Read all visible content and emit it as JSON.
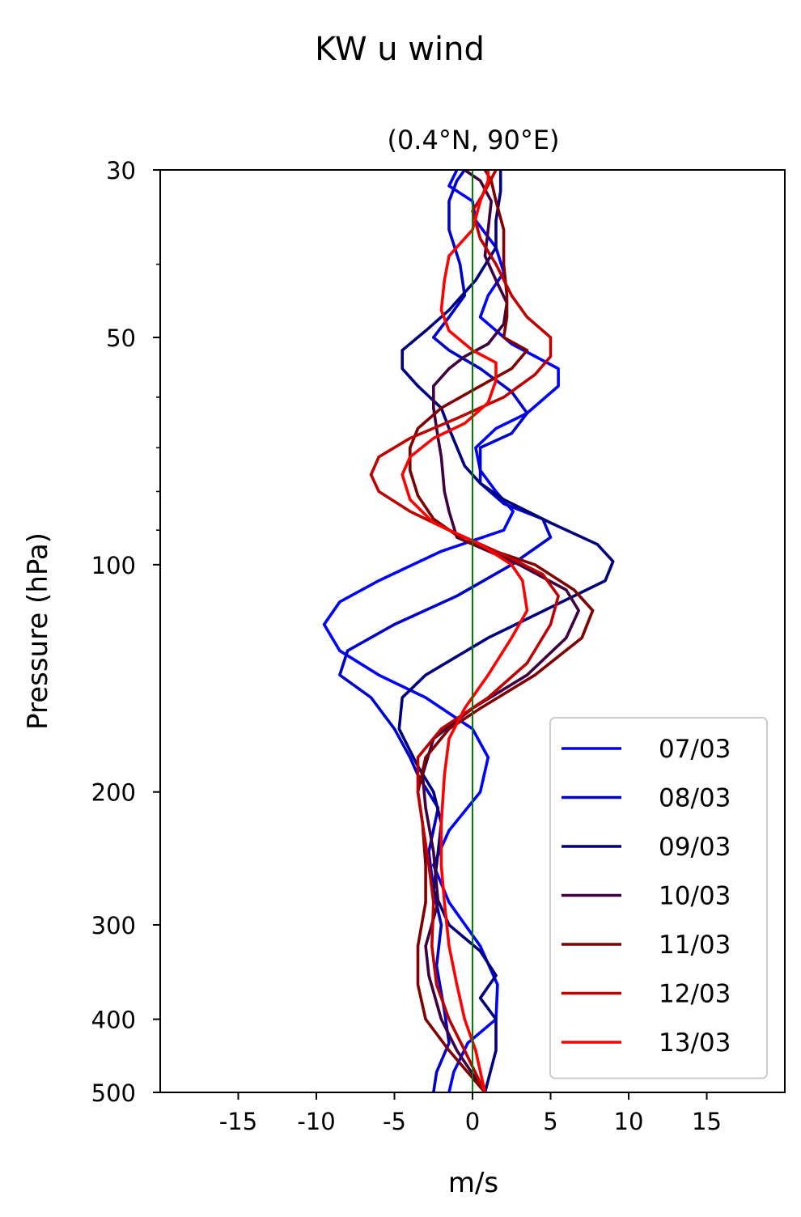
{
  "chart_data": {
    "type": "line",
    "title": "KW u wind",
    "subtitle": "(0.4°N, 90°E)",
    "xlabel": "m/s",
    "ylabel": "Pressure (hPa)",
    "xlim": [
      -20,
      20
    ],
    "ylim": [
      500,
      30
    ],
    "yscale": "log",
    "xticks": [
      -15,
      -10,
      -5,
      0,
      5,
      10,
      15
    ],
    "xtick_labels": [
      "-15",
      "-10",
      "-5",
      "0",
      "5",
      "10",
      "15"
    ],
    "yticks": [
      30,
      50,
      100,
      200,
      300,
      400,
      500
    ],
    "ytick_labels": [
      "30",
      "50",
      "100",
      "200",
      "300",
      "400",
      "500"
    ],
    "y_minor_ticks": [
      40,
      60,
      70,
      80,
      90
    ],
    "reference_line": {
      "x": 0,
      "color": "#008000"
    },
    "legend_position": "bottom-right",
    "grid": false,
    "series": [
      {
        "name": "07/03",
        "color": "#0000ff",
        "points": [
          [
            -1.5,
            500
          ],
          [
            -1.2,
            470
          ],
          [
            -0.3,
            430
          ],
          [
            1.5,
            400
          ],
          [
            1.6,
            360
          ],
          [
            0.5,
            320
          ],
          [
            -1.5,
            280
          ],
          [
            -2.5,
            250
          ],
          [
            -1.5,
            225
          ],
          [
            0.5,
            200
          ],
          [
            1.0,
            180
          ],
          [
            0.0,
            165
          ],
          [
            -3.0,
            150
          ],
          [
            -6.0,
            140
          ],
          [
            -8.5,
            130
          ],
          [
            -9.5,
            120
          ],
          [
            -8.5,
            112
          ],
          [
            -6.0,
            105
          ],
          [
            -2.0,
            96
          ],
          [
            2.0,
            90
          ],
          [
            2.6,
            85
          ],
          [
            1.5,
            80
          ],
          [
            0.5,
            75
          ],
          [
            0.2,
            70
          ],
          [
            1.5,
            66
          ],
          [
            3.5,
            63
          ],
          [
            5.5,
            58
          ],
          [
            5.5,
            55
          ],
          [
            2.5,
            51
          ],
          [
            0.5,
            47
          ],
          [
            1.0,
            44
          ],
          [
            2.0,
            41
          ],
          [
            1.5,
            38
          ],
          [
            0.2,
            35
          ],
          [
            0.0,
            33
          ],
          [
            -1.5,
            31.5
          ],
          [
            -1.0,
            30
          ]
        ]
      },
      {
        "name": "08/03",
        "color": "#0000cc",
        "points": [
          [
            -2.5,
            500
          ],
          [
            -2.3,
            470
          ],
          [
            -1.5,
            430
          ],
          [
            -1.8,
            390
          ],
          [
            -2.3,
            340
          ],
          [
            -2.0,
            300
          ],
          [
            -2.5,
            270
          ],
          [
            -2.8,
            240
          ],
          [
            -2.2,
            210
          ],
          [
            -3.5,
            190
          ],
          [
            -4.0,
            180
          ],
          [
            -5.0,
            165
          ],
          [
            -6.5,
            150
          ],
          [
            -8.5,
            140
          ],
          [
            -8.0,
            130
          ],
          [
            -5.0,
            120
          ],
          [
            -1.0,
            110
          ],
          [
            2.5,
            100
          ],
          [
            5.0,
            92
          ],
          [
            4.5,
            87
          ],
          [
            2.0,
            83
          ],
          [
            0.5,
            78
          ],
          [
            0.5,
            70
          ],
          [
            2.5,
            67
          ],
          [
            3.5,
            63
          ],
          [
            2.5,
            59
          ],
          [
            0.5,
            55
          ],
          [
            -1.5,
            52
          ],
          [
            -2.5,
            50
          ],
          [
            -1.5,
            47
          ],
          [
            -0.5,
            44
          ],
          [
            -0.8,
            40
          ],
          [
            -1.5,
            36
          ],
          [
            -1.5,
            33
          ],
          [
            -1.0,
            31
          ],
          [
            -0.5,
            30
          ]
        ]
      },
      {
        "name": "09/03",
        "color": "#00007f",
        "points": [
          [
            0.8,
            500
          ],
          [
            1.5,
            440
          ],
          [
            1.5,
            400
          ],
          [
            0.5,
            375
          ],
          [
            1.5,
            350
          ],
          [
            0.5,
            325
          ],
          [
            -1.5,
            300
          ],
          [
            -2.5,
            270
          ],
          [
            -2.2,
            240
          ],
          [
            -2.0,
            220
          ],
          [
            -2.5,
            200
          ],
          [
            -3.5,
            185
          ],
          [
            -4.7,
            165
          ],
          [
            -4.5,
            150
          ],
          [
            -3.0,
            140
          ],
          [
            1.0,
            125
          ],
          [
            6.5,
            110
          ],
          [
            8.5,
            105
          ],
          [
            9.0,
            99
          ],
          [
            8.0,
            94
          ],
          [
            5.0,
            88
          ],
          [
            2.0,
            82
          ],
          [
            0.5,
            78
          ],
          [
            -0.5,
            74
          ],
          [
            -1.5,
            66
          ],
          [
            -2.0,
            62
          ],
          [
            -3.5,
            58
          ],
          [
            -4.5,
            55
          ],
          [
            -4.5,
            52
          ],
          [
            -3.0,
            49
          ],
          [
            -1.5,
            46
          ],
          [
            0.2,
            42
          ],
          [
            1.5,
            38
          ],
          [
            1.5,
            35
          ],
          [
            1.8,
            32
          ],
          [
            1.8,
            30
          ]
        ]
      },
      {
        "name": "10/03",
        "color": "#3f003f",
        "points": [
          [
            0.8,
            500
          ],
          [
            -1.0,
            440
          ],
          [
            -2.0,
            400
          ],
          [
            -2.8,
            350
          ],
          [
            -3.0,
            320
          ],
          [
            -2.2,
            280
          ],
          [
            -2.5,
            240
          ],
          [
            -3.0,
            210
          ],
          [
            -3.2,
            190
          ],
          [
            -2.5,
            170
          ],
          [
            0.0,
            155
          ],
          [
            3.5,
            140
          ],
          [
            6.0,
            125
          ],
          [
            6.8,
            115
          ],
          [
            6.0,
            108
          ],
          [
            3.0,
            100
          ],
          [
            -1.0,
            92
          ],
          [
            -1.5,
            85
          ],
          [
            -1.8,
            80
          ],
          [
            -2.0,
            72
          ],
          [
            -2.2,
            68
          ],
          [
            -2.5,
            62
          ],
          [
            -2.5,
            58
          ],
          [
            -1.5,
            55
          ],
          [
            -0.5,
            53
          ],
          [
            1.0,
            51
          ],
          [
            2.0,
            48
          ],
          [
            2.2,
            45
          ],
          [
            1.5,
            42
          ],
          [
            0.8,
            39
          ],
          [
            1.0,
            36
          ],
          [
            1.2,
            33
          ],
          [
            0.5,
            31
          ],
          [
            -0.5,
            30
          ]
        ]
      },
      {
        "name": "11/03",
        "color": "#7f0000",
        "points": [
          [
            0.8,
            500
          ],
          [
            -1.5,
            440
          ],
          [
            -3.0,
            400
          ],
          [
            -3.5,
            360
          ],
          [
            -3.5,
            320
          ],
          [
            -3.0,
            280
          ],
          [
            -3.0,
            250
          ],
          [
            -3.2,
            220
          ],
          [
            -3.5,
            200
          ],
          [
            -3.0,
            180
          ],
          [
            -1.5,
            165
          ],
          [
            0.5,
            155
          ],
          [
            4.0,
            140
          ],
          [
            7.0,
            125
          ],
          [
            7.7,
            115
          ],
          [
            6.5,
            108
          ],
          [
            4.0,
            100
          ],
          [
            -0.5,
            93
          ],
          [
            -2.5,
            87
          ],
          [
            -3.5,
            81
          ],
          [
            -4.0,
            75
          ],
          [
            -4.0,
            70
          ],
          [
            -3.5,
            66
          ],
          [
            -2.0,
            62
          ],
          [
            0.5,
            58
          ],
          [
            2.5,
            55
          ],
          [
            3.5,
            52
          ],
          [
            2.0,
            50
          ],
          [
            2.2,
            47
          ],
          [
            2.2,
            44
          ],
          [
            2.0,
            40
          ],
          [
            2.0,
            36
          ],
          [
            1.5,
            33
          ],
          [
            1.2,
            31
          ],
          [
            0.8,
            30
          ]
        ]
      },
      {
        "name": "12/03",
        "color": "#bf0000",
        "points": [
          [
            0.8,
            500
          ],
          [
            -0.5,
            440
          ],
          [
            -1.5,
            400
          ],
          [
            -2.3,
            360
          ],
          [
            -2.6,
            320
          ],
          [
            -2.5,
            280
          ],
          [
            -2.8,
            250
          ],
          [
            -3.2,
            220
          ],
          [
            -3.5,
            200
          ],
          [
            -3.5,
            180
          ],
          [
            -2.0,
            165
          ],
          [
            1.0,
            150
          ],
          [
            3.5,
            135
          ],
          [
            5.0,
            120
          ],
          [
            5.5,
            110
          ],
          [
            4.5,
            103
          ],
          [
            2.0,
            97
          ],
          [
            -1.5,
            90
          ],
          [
            -4.0,
            85
          ],
          [
            -6.0,
            80
          ],
          [
            -6.5,
            76
          ],
          [
            -6.0,
            72
          ],
          [
            -4.0,
            68
          ],
          [
            -1.0,
            64
          ],
          [
            2.0,
            60
          ],
          [
            4.0,
            56
          ],
          [
            5.0,
            53
          ],
          [
            5.0,
            50
          ],
          [
            3.5,
            47
          ],
          [
            2.5,
            44
          ],
          [
            1.5,
            40
          ],
          [
            0.5,
            37
          ],
          [
            0.0,
            34
          ],
          [
            0.8,
            32
          ],
          [
            1.5,
            30
          ]
        ]
      },
      {
        "name": "13/03",
        "color": "#ff0000",
        "points": [
          [
            0.8,
            500
          ],
          [
            0.2,
            440
          ],
          [
            -0.5,
            400
          ],
          [
            -1.0,
            360
          ],
          [
            -1.5,
            320
          ],
          [
            -1.8,
            280
          ],
          [
            -2.0,
            250
          ],
          [
            -2.0,
            220
          ],
          [
            -1.8,
            190
          ],
          [
            -1.5,
            170
          ],
          [
            -0.5,
            155
          ],
          [
            1.0,
            140
          ],
          [
            2.5,
            125
          ],
          [
            3.5,
            115
          ],
          [
            3.2,
            105
          ],
          [
            2.5,
            100
          ],
          [
            0.5,
            94
          ],
          [
            -2.5,
            88
          ],
          [
            -4.0,
            82
          ],
          [
            -4.5,
            76
          ],
          [
            -4.0,
            72
          ],
          [
            -2.5,
            68
          ],
          [
            -0.5,
            65
          ],
          [
            1.0,
            61
          ],
          [
            1.5,
            57
          ],
          [
            1.5,
            54
          ],
          [
            0.0,
            52
          ],
          [
            -1.5,
            49
          ],
          [
            -2.0,
            46
          ],
          [
            -1.8,
            42
          ],
          [
            -1.5,
            39
          ],
          [
            0.0,
            36
          ],
          [
            0.5,
            33
          ],
          [
            1.0,
            31
          ],
          [
            1.0,
            30
          ]
        ]
      }
    ]
  }
}
